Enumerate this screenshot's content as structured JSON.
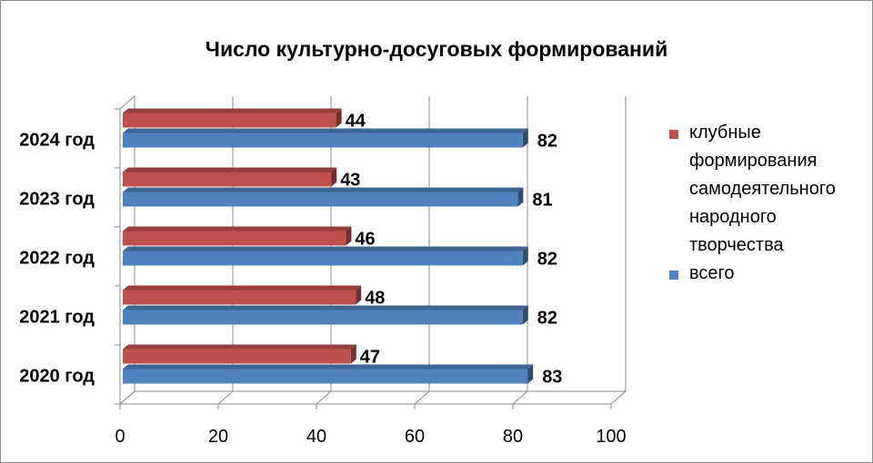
{
  "chart_data": {
    "type": "bar",
    "orientation": "horizontal",
    "title": "Число культурно-досуговых формирований",
    "xlabel": "",
    "ylabel": "",
    "categories": [
      "2024 год",
      "2023 год",
      "2022 год",
      "2021 год",
      "2020 год"
    ],
    "series": [
      {
        "name": "клубные формирования самодеятельного народного творчества",
        "values": [
          44,
          43,
          46,
          48,
          47
        ],
        "color": "#c0504d"
      },
      {
        "name": "всего",
        "values": [
          82,
          81,
          82,
          82,
          83
        ],
        "color": "#4f81bd"
      }
    ],
    "xlim": [
      0,
      100
    ],
    "xticks": [
      "0",
      "20",
      "40",
      "60",
      "80",
      "100"
    ],
    "grid": true,
    "legend_position": "right",
    "data_labels": true
  }
}
